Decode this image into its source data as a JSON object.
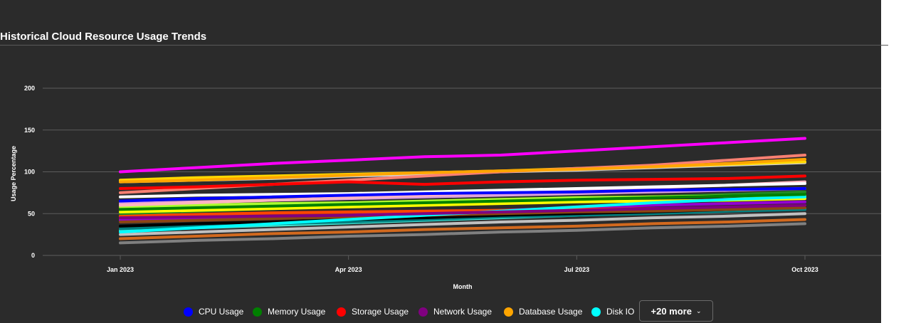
{
  "chart_data": {
    "type": "line",
    "title": "Historical Cloud Resource Usage Trends",
    "xlabel": "Month",
    "ylabel": "Usage Percentage",
    "ylim": [
      0,
      200
    ],
    "yticks": [
      0,
      50,
      100,
      150,
      200
    ],
    "x": [
      "2023-01",
      "2023-02",
      "2023-03",
      "2023-04",
      "2023-05",
      "2023-06",
      "2023-07",
      "2023-08",
      "2023-09",
      "2023-10"
    ],
    "xtick_labels": [
      "Jan 2023",
      "Apr 2023",
      "Jul 2023",
      "Oct 2023"
    ],
    "grid": true,
    "legend_position": "bottom",
    "series": [
      {
        "name": "CPU Usage",
        "color": "#0000ff",
        "values": [
          65,
          68,
          70,
          72,
          74,
          75,
          76,
          78,
          79,
          80
        ]
      },
      {
        "name": "Memory Usage",
        "color": "#008000",
        "values": [
          55,
          57,
          59,
          61,
          63,
          65,
          67,
          69,
          71,
          73
        ]
      },
      {
        "name": "Storage Usage",
        "color": "#ff0000",
        "values": [
          80,
          82,
          85,
          88,
          85,
          88,
          90,
          91,
          92,
          95
        ]
      },
      {
        "name": "Network Usage",
        "color": "#800080",
        "values": [
          45,
          46,
          47,
          48,
          50,
          52,
          54,
          56,
          58,
          60
        ]
      },
      {
        "name": "Database Usage",
        "color": "#ffa500",
        "values": [
          88,
          90,
          93,
          96,
          99,
          101,
          103,
          106,
          110,
          115
        ]
      },
      {
        "name": "Disk IO",
        "color": "#00ffff",
        "values": [
          28,
          33,
          38,
          43,
          48,
          53,
          58,
          63,
          67,
          70
        ]
      },
      {
        "color": "#ff00ff",
        "values": [
          100,
          105,
          110,
          114,
          118,
          120,
          125,
          130,
          135,
          140
        ]
      },
      {
        "color": "#fa8072",
        "values": [
          75,
          80,
          85,
          90,
          95,
          100,
          104,
          108,
          114,
          120
        ]
      },
      {
        "color": "#ffd700",
        "values": [
          90,
          93,
          95,
          97,
          99,
          101,
          104,
          106,
          109,
          112
        ]
      },
      {
        "color": "#d3d3d3",
        "values": [
          88,
          90,
          92,
          95,
          97,
          100,
          102,
          105,
          108,
          111
        ]
      },
      {
        "color": "#ffffff",
        "values": [
          70,
          72,
          73,
          74,
          76,
          78,
          80,
          82,
          84,
          86
        ]
      },
      {
        "color": "#ffb6c1",
        "values": [
          60,
          63,
          66,
          69,
          72,
          75,
          78,
          81,
          84,
          88
        ]
      },
      {
        "color": "#adff2f",
        "values": [
          58,
          60,
          62,
          63,
          65,
          67,
          69,
          70,
          71,
          72
        ]
      },
      {
        "color": "#ffff00",
        "values": [
          52,
          54,
          56,
          58,
          60,
          62,
          64,
          65,
          66,
          68
        ]
      },
      {
        "color": "#228b22",
        "values": [
          50,
          53,
          56,
          59,
          62,
          65,
          68,
          70,
          73,
          76
        ]
      },
      {
        "color": "#8b4513",
        "values": [
          40,
          42,
          44,
          46,
          48,
          50,
          52,
          53,
          55,
          57
        ]
      },
      {
        "color": "#000000",
        "values": [
          35,
          38,
          40,
          43,
          45,
          48,
          50,
          52,
          55,
          58
        ]
      },
      {
        "color": "#008080",
        "values": [
          32,
          35,
          38,
          40,
          43,
          46,
          48,
          50,
          53,
          55
        ]
      },
      {
        "color": "#c0c0c0",
        "values": [
          25,
          28,
          31,
          34,
          37,
          40,
          42,
          45,
          47,
          50
        ]
      },
      {
        "color": "#d2691e",
        "values": [
          20,
          23,
          26,
          28,
          31,
          33,
          35,
          38,
          40,
          43
        ]
      },
      {
        "color": "#808080",
        "values": [
          15,
          18,
          20,
          23,
          25,
          28,
          30,
          33,
          35,
          38
        ]
      },
      {
        "color": "#ff4500",
        "values": [
          47,
          49,
          51,
          52,
          53,
          54,
          55,
          56,
          57,
          58
        ]
      },
      {
        "color": "#9400d3",
        "values": [
          42,
          44,
          46,
          48,
          51,
          54,
          57,
          60,
          62,
          64
        ]
      },
      {
        "color": "#40e0d0",
        "values": [
          30,
          33,
          36,
          39,
          42,
          45,
          48,
          51,
          54,
          56
        ]
      },
      {
        "color": "#a52a2a",
        "values": [
          44,
          46,
          48,
          50,
          52,
          54,
          55,
          56,
          57,
          59
        ]
      },
      {
        "color": "#dda0dd",
        "values": [
          62,
          64,
          66,
          68,
          70,
          72,
          74,
          76,
          78,
          80
        ]
      }
    ]
  },
  "legend": {
    "items": [
      {
        "label": "CPU Usage",
        "color": "#0000ff"
      },
      {
        "label": "Memory Usage",
        "color": "#008000"
      },
      {
        "label": "Storage Usage",
        "color": "#ff0000"
      },
      {
        "label": "Network Usage",
        "color": "#800080"
      },
      {
        "label": "Database Usage",
        "color": "#ffa500"
      },
      {
        "label": "Disk IO",
        "color": "#00ffff"
      }
    ],
    "more_label": "+20 more",
    "more_icon": "chevron-down-icon"
  }
}
